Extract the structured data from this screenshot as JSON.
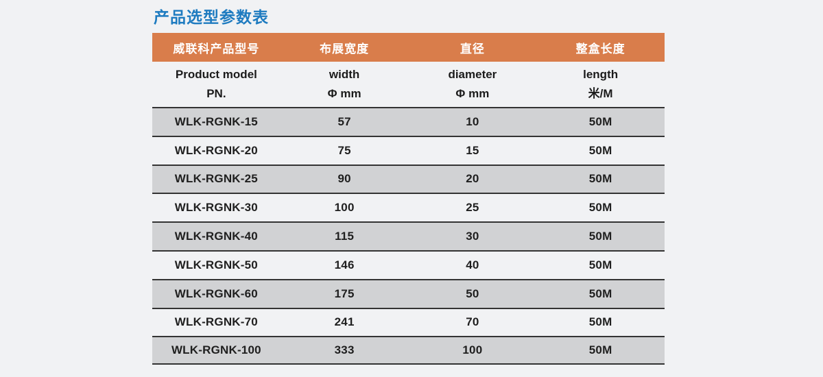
{
  "page": {
    "title": "产品选型参数表"
  },
  "table": {
    "header": {
      "model": "威联科产品型号",
      "width": "布展宽度",
      "diameter": "直径",
      "length": "整盒长度"
    },
    "subheader": {
      "model_line1": "Product model",
      "model_line2": "PN.",
      "width_line1": "width",
      "width_line2": "Φ mm",
      "diameter_line1": "diameter",
      "diameter_line2": "Φ mm",
      "length_line1": "length",
      "length_line2": "米/M"
    },
    "rows": [
      {
        "model": "WLK-RGNK-15",
        "width": "57",
        "diameter": "10",
        "length": "50M"
      },
      {
        "model": "WLK-RGNK-20",
        "width": "75",
        "diameter": "15",
        "length": "50M"
      },
      {
        "model": "WLK-RGNK-25",
        "width": "90",
        "diameter": "20",
        "length": "50M"
      },
      {
        "model": "WLK-RGNK-30",
        "width": "100",
        "diameter": "25",
        "length": "50M"
      },
      {
        "model": "WLK-RGNK-40",
        "width": "115",
        "diameter": "30",
        "length": "50M"
      },
      {
        "model": "WLK-RGNK-50",
        "width": "146",
        "diameter": "40",
        "length": "50M"
      },
      {
        "model": "WLK-RGNK-60",
        "width": "175",
        "diameter": "50",
        "length": "50M"
      },
      {
        "model": "WLK-RGNK-70",
        "width": "241",
        "diameter": "70",
        "length": "50M"
      },
      {
        "model": "WLK-RGNK-100",
        "width": "333",
        "diameter": "100",
        "length": "50M"
      }
    ]
  },
  "colors": {
    "title_blue": "#1e7bc0",
    "header_orange": "#d97d4b",
    "row_shade_gray": "#d1d2d4",
    "page_background": "#f1f2f4",
    "row_border": "#333333",
    "header_text": "#ffffff",
    "body_text": "#1f1f1f"
  }
}
